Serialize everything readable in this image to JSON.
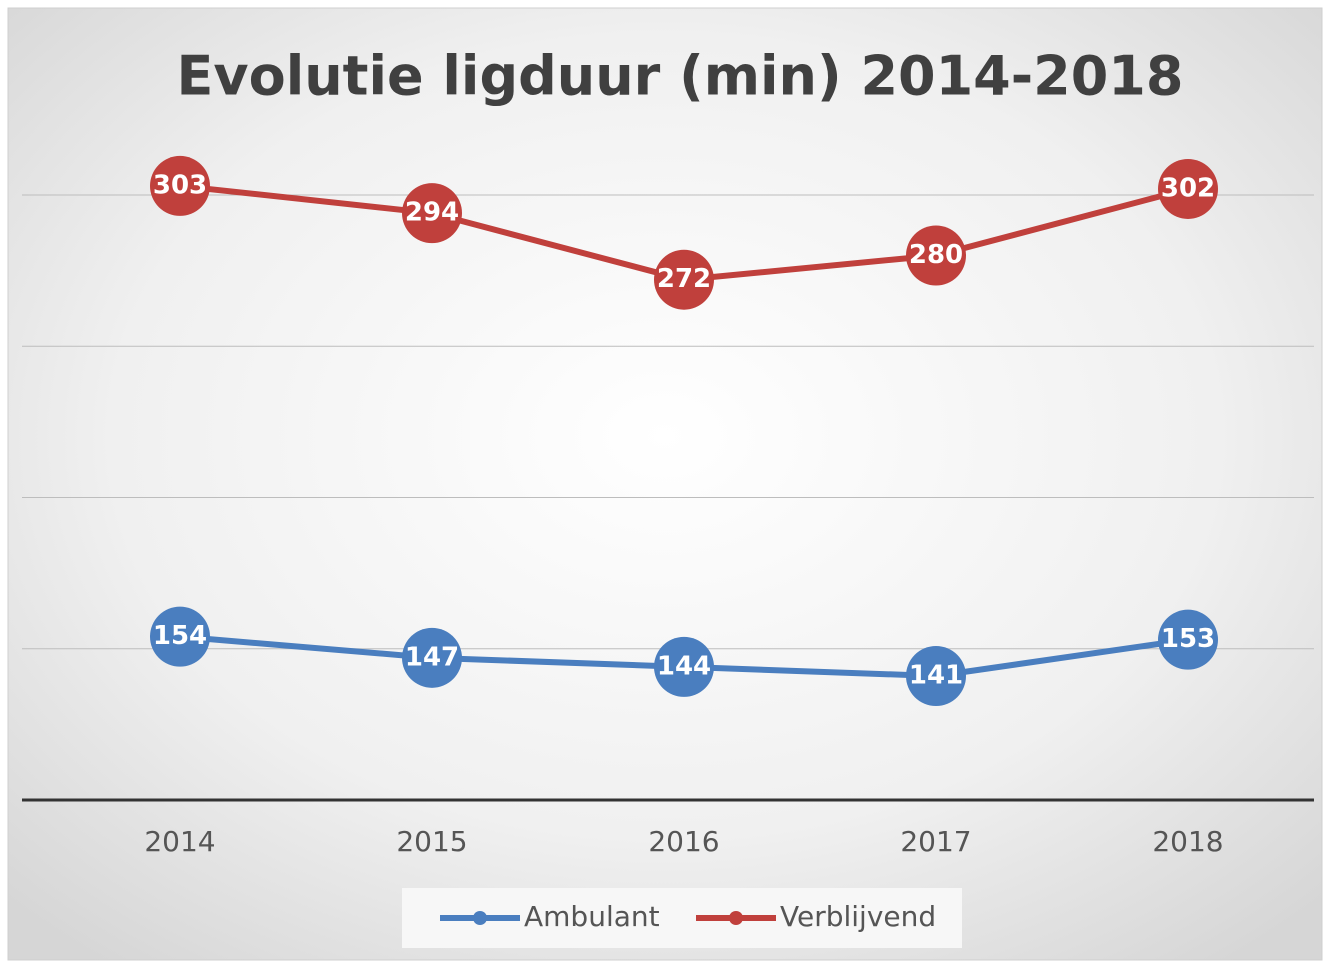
{
  "chart_data": {
    "type": "line",
    "title": "Evolutie ligduur (min) 2014-2018",
    "categories": [
      "2014",
      "2015",
      "2016",
      "2017",
      "2018"
    ],
    "series": [
      {
        "name": "Ambulant",
        "color": "#4a7ebf",
        "values": [
          154,
          147,
          144,
          141,
          153
        ]
      },
      {
        "name": "Verblijvend",
        "color": "#c0403c",
        "values": [
          303,
          294,
          272,
          280,
          302
        ]
      }
    ],
    "ylim": [
      100,
      300
    ],
    "yticks": [
      100,
      150,
      200,
      250,
      300
    ],
    "grid": true,
    "legend": "bottom"
  }
}
